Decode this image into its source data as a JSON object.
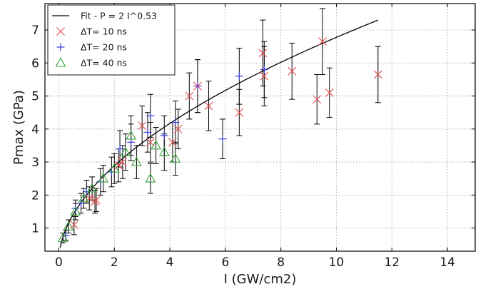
{
  "chart_data": {
    "type": "scatter",
    "xlabel": "I (GW/cm2)",
    "ylabel": "Pmax (GPa)",
    "xlim": [
      -0.5,
      15
    ],
    "ylim": [
      0.3,
      7.8
    ],
    "xticks": [
      0,
      2,
      4,
      6,
      8,
      10,
      12,
      14
    ],
    "yticks": [
      1,
      2,
      3,
      4,
      5,
      6,
      7
    ],
    "grid": true,
    "legend_position": "top-left",
    "fit": {
      "name": "Fit - P = 2 I^0.53",
      "color": "#000000",
      "coef": 2,
      "exponent": 0.53,
      "x_range": [
        0.05,
        11.5
      ]
    },
    "series": [
      {
        "name": "ΔT= 10 ns",
        "marker": "x",
        "color": "#e8575a",
        "points": [
          {
            "x": 0.55,
            "y": 1.1,
            "err": 0.3
          },
          {
            "x": 1.1,
            "y": 1.9,
            "err": 0.35
          },
          {
            "x": 1.3,
            "y": 1.8,
            "err": 0.35
          },
          {
            "x": 1.35,
            "y": 1.85,
            "err": 0.35
          },
          {
            "x": 2.15,
            "y": 2.9,
            "err": 0.5
          },
          {
            "x": 2.3,
            "y": 3.0,
            "err": 0.5
          },
          {
            "x": 3.0,
            "y": 4.1,
            "err": 0.6
          },
          {
            "x": 3.3,
            "y": 3.6,
            "err": 0.6
          },
          {
            "x": 4.1,
            "y": 3.6,
            "err": 0.6
          },
          {
            "x": 4.3,
            "y": 4.0,
            "err": 0.6
          },
          {
            "x": 4.7,
            "y": 5.0,
            "err": 0.7
          },
          {
            "x": 5.0,
            "y": 5.3,
            "err": 0.8
          },
          {
            "x": 5.4,
            "y": 4.7,
            "err": 0.75
          },
          {
            "x": 6.5,
            "y": 4.5,
            "err": 0.7
          },
          {
            "x": 7.35,
            "y": 6.3,
            "err": 1.0
          },
          {
            "x": 7.4,
            "y": 5.6,
            "err": 0.9
          },
          {
            "x": 8.4,
            "y": 5.75,
            "err": 0.85
          },
          {
            "x": 9.3,
            "y": 4.9,
            "err": 0.75
          },
          {
            "x": 9.5,
            "y": 6.65,
            "err": 1.0
          },
          {
            "x": 9.75,
            "y": 5.1,
            "err": 0.75
          },
          {
            "x": 11.5,
            "y": 5.65,
            "err": 0.85
          }
        ]
      },
      {
        "name": "ΔT= 20 ns",
        "marker": "+",
        "color": "#3b3bd9",
        "points": [
          {
            "x": 0.25,
            "y": 0.78,
            "err": 0.15
          },
          {
            "x": 0.6,
            "y": 1.6,
            "err": 0.25
          },
          {
            "x": 0.8,
            "y": 1.75,
            "err": 0.3
          },
          {
            "x": 1.0,
            "y": 2.1,
            "err": 0.35
          },
          {
            "x": 1.5,
            "y": 2.4,
            "err": 0.4
          },
          {
            "x": 1.9,
            "y": 2.7,
            "err": 0.45
          },
          {
            "x": 2.2,
            "y": 3.4,
            "err": 0.55
          },
          {
            "x": 2.6,
            "y": 3.6,
            "err": 0.55
          },
          {
            "x": 3.2,
            "y": 3.9,
            "err": 0.6
          },
          {
            "x": 3.3,
            "y": 4.4,
            "err": 0.65
          },
          {
            "x": 3.8,
            "y": 3.8,
            "err": 0.6
          },
          {
            "x": 4.2,
            "y": 4.2,
            "err": 0.65
          },
          {
            "x": 5.0,
            "y": 5.3,
            "err": 0.8
          },
          {
            "x": 5.9,
            "y": 3.7,
            "err": 0.6
          },
          {
            "x": 6.5,
            "y": 5.6,
            "err": 0.85
          },
          {
            "x": 7.4,
            "y": 5.8,
            "err": 0.85
          }
        ]
      },
      {
        "name": "ΔT= 40 ns",
        "marker": "triangle",
        "color": "#3aa63a",
        "points": [
          {
            "x": 0.15,
            "y": 0.7,
            "err": 0.15
          },
          {
            "x": 0.35,
            "y": 1.05,
            "err": 0.2
          },
          {
            "x": 0.6,
            "y": 1.5,
            "err": 0.25
          },
          {
            "x": 0.9,
            "y": 1.9,
            "err": 0.3
          },
          {
            "x": 1.2,
            "y": 2.2,
            "err": 0.35
          },
          {
            "x": 1.6,
            "y": 2.5,
            "err": 0.4
          },
          {
            "x": 2.0,
            "y": 2.8,
            "err": 0.45
          },
          {
            "x": 2.4,
            "y": 3.3,
            "err": 0.55
          },
          {
            "x": 2.6,
            "y": 3.8,
            "err": 0.6
          },
          {
            "x": 2.8,
            "y": 3.0,
            "err": 0.5
          },
          {
            "x": 3.3,
            "y": 2.5,
            "err": 0.45
          },
          {
            "x": 3.5,
            "y": 3.5,
            "err": 0.55
          },
          {
            "x": 3.8,
            "y": 3.3,
            "err": 0.55
          },
          {
            "x": 4.2,
            "y": 3.1,
            "err": 0.5
          }
        ]
      }
    ]
  }
}
